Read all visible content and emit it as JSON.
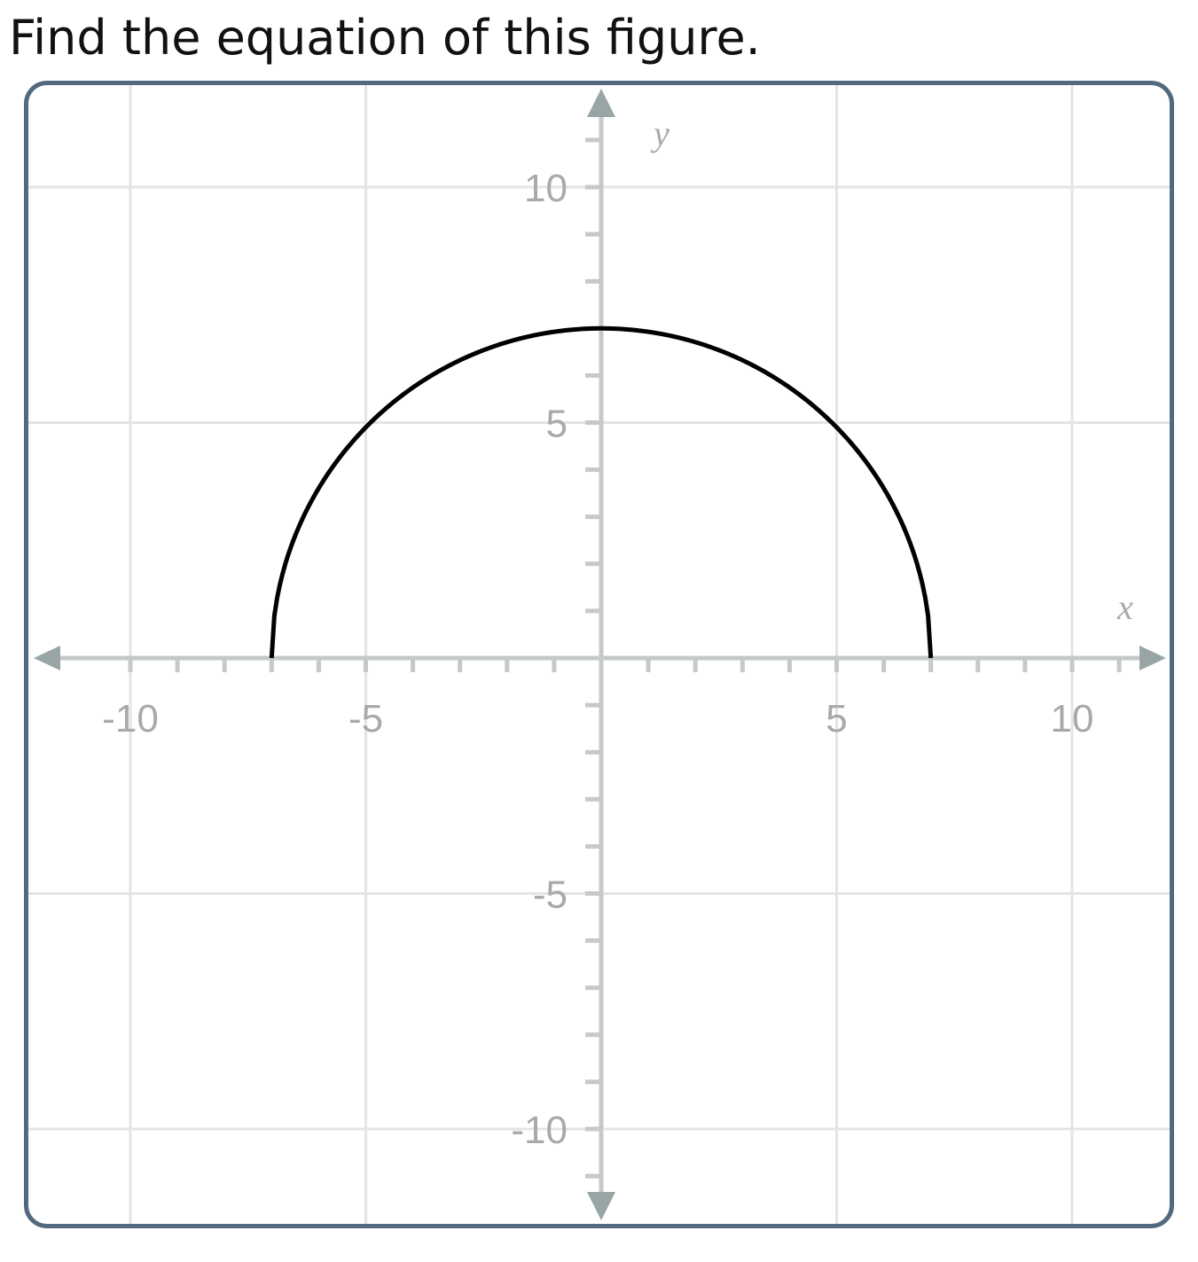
{
  "question": {
    "text": "Find the equation of this figure."
  },
  "colors": {
    "frame": "#53697e",
    "grid": "#e4e4e4",
    "axis": "#c5c9ca",
    "arrow": "#99a5a5",
    "tick_label": "#a9a9a9",
    "curve": "#000000"
  },
  "chart_data": {
    "type": "line",
    "title": "",
    "xlabel": "x",
    "ylabel": "y",
    "xlim": [
      -11.5,
      12.1
    ],
    "ylim": [
      -12.1,
      12.1
    ],
    "grid": true,
    "major_step": 5,
    "minor_step": 1,
    "x_ticks": [
      {
        "value": -10,
        "label": "-10"
      },
      {
        "value": -5,
        "label": "-5"
      },
      {
        "value": 5,
        "label": "5"
      },
      {
        "value": 10,
        "label": "10"
      }
    ],
    "y_ticks": [
      {
        "value": 10,
        "label": "10"
      },
      {
        "value": 5,
        "label": "5"
      },
      {
        "value": -5,
        "label": "-5"
      },
      {
        "value": -10,
        "label": "-10"
      }
    ],
    "series": [
      {
        "shape": "upper semicircle",
        "center": [
          0,
          0
        ],
        "radius": 7,
        "x_domain": [
          -7,
          7
        ],
        "color": "#000000"
      }
    ]
  }
}
